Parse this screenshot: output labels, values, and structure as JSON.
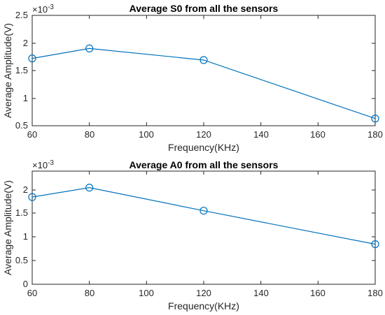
{
  "chart_data": [
    {
      "type": "line",
      "title": "Average S0 from all the sensors",
      "xlabel": "Frequency(KHz)",
      "ylabel": "Average Amplitude(V)",
      "y_exponent": "×10",
      "y_exponent_power": "-3",
      "x": [
        60,
        80,
        120,
        180
      ],
      "series": [
        {
          "values": [
            1.72,
            1.9,
            1.69,
            0.63
          ],
          "color": "#0072bd",
          "marker": "circle"
        }
      ],
      "xlim": [
        60,
        180
      ],
      "ylim": [
        0.5,
        2.5
      ],
      "xticks": [
        "60",
        "80",
        "100",
        "120",
        "140",
        "160",
        "180"
      ],
      "yticks": [
        "0.5",
        "1",
        "1.5",
        "2",
        "2.5"
      ],
      "grid": false
    },
    {
      "type": "line",
      "title": "Average A0 from all the sensors",
      "xlabel": "Frequency(KHz)",
      "ylabel": "Average Amplitude(V)",
      "y_exponent": "×10",
      "y_exponent_power": "-3",
      "x": [
        60,
        80,
        120,
        180
      ],
      "series": [
        {
          "values": [
            1.85,
            2.05,
            1.56,
            0.85
          ],
          "color": "#0072bd",
          "marker": "circle"
        }
      ],
      "xlim": [
        60,
        180
      ],
      "ylim": [
        0,
        2.4
      ],
      "xticks": [
        "60",
        "80",
        "100",
        "120",
        "140",
        "160",
        "180"
      ],
      "yticks": [
        "0",
        "0.5",
        "1",
        "1.5",
        "2"
      ],
      "grid": false
    }
  ]
}
